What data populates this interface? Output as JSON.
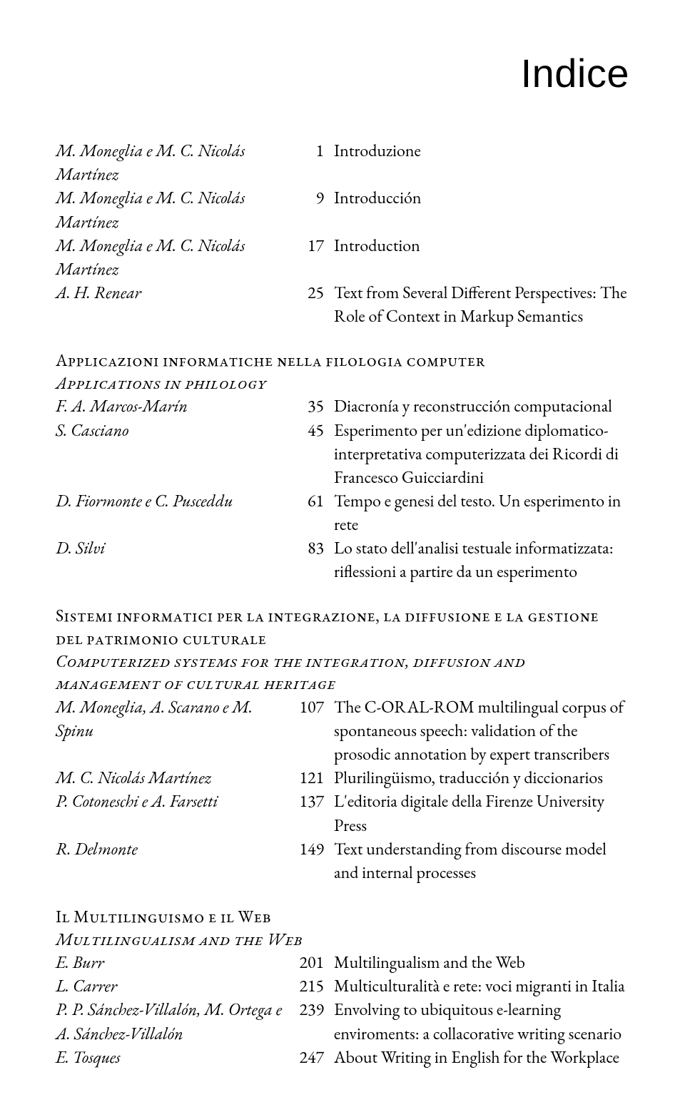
{
  "page_title": "Indice",
  "top_entries": [
    {
      "author": "M. Moneglia e M. C. Nicolás Martínez",
      "page": "1",
      "title": "Introduzione"
    },
    {
      "author": "M. Moneglia e M. C. Nicolás Martínez",
      "page": "9",
      "title": "Introducción"
    },
    {
      "author": "M. Moneglia e M. C. Nicolás Martínez",
      "page": "17",
      "title": "Introduction"
    },
    {
      "author": "A. H. Renear",
      "page": "25",
      "title": "Text from Several Different Perspectives: The Role of Context in Markup Semantics"
    }
  ],
  "sections": [
    {
      "heading_it": "Applicazioni informatiche nella filologia computer",
      "heading_en": "Applications in philology",
      "entries": [
        {
          "author": "F. A. Marcos-Marín",
          "page": "35",
          "title": "Diacronía y reconstrucción computacional"
        },
        {
          "author": "S. Casciano",
          "page": "45",
          "title": "Esperimento per un'edizione diplomatico-interpretativa computerizzata dei Ricordi di Francesco Guicciardini"
        },
        {
          "author": "D. Fiormonte e C. Pusceddu",
          "page": "61",
          "title": "Tempo e genesi del testo. Un esperimento in rete"
        },
        {
          "author": "D. Silvi",
          "page": "83",
          "title": "Lo stato dell'analisi testuale informatizzata: riflessioni a partire da un esperimento"
        }
      ]
    },
    {
      "heading_it": "Sistemi informatici per la integrazione, la diffusione e la gestione del patrimonio culturale",
      "heading_en": "Computerized systems for the integration, diffusion and management of cultural heritage",
      "entries": [
        {
          "author": "M. Moneglia, A. Scarano e M. Spinu",
          "page": "107",
          "title": "The C-ORAL-ROM multilingual corpus of spontaneous speech: validation of the prosodic annotation by expert transcribers"
        },
        {
          "author": "M. C. Nicolás Martínez",
          "page": "121",
          "title": "Plurilingüismo, traducción y diccionarios"
        },
        {
          "author": "P. Cotoneschi e A. Farsetti",
          "page": "137",
          "title": "L'editoria digitale della Firenze University Press"
        },
        {
          "author": "R. Delmonte",
          "page": "149",
          "title": "Text understanding from discourse model and internal processes"
        }
      ]
    },
    {
      "heading_it": "Il Multilinguismo e il Web",
      "heading_en": "Multilingualism and the Web",
      "entries": [
        {
          "author": "E. Burr",
          "page": "201",
          "title": "Multilingualism and the Web"
        },
        {
          "author": "L. Carrer",
          "page": "215",
          "title": "Multiculturalità e rete: voci migranti in Italia"
        },
        {
          "author": "P. P. Sánchez-Villalón, M. Ortega e A. Sánchez-Villalón",
          "page": "239",
          "title": "Envolving to ubiquitous e-learning enviroments: a collacorative writing scenario"
        },
        {
          "author": "E. Tosques",
          "page": "247",
          "title": "About Writing in English for the Workplace"
        }
      ]
    }
  ]
}
